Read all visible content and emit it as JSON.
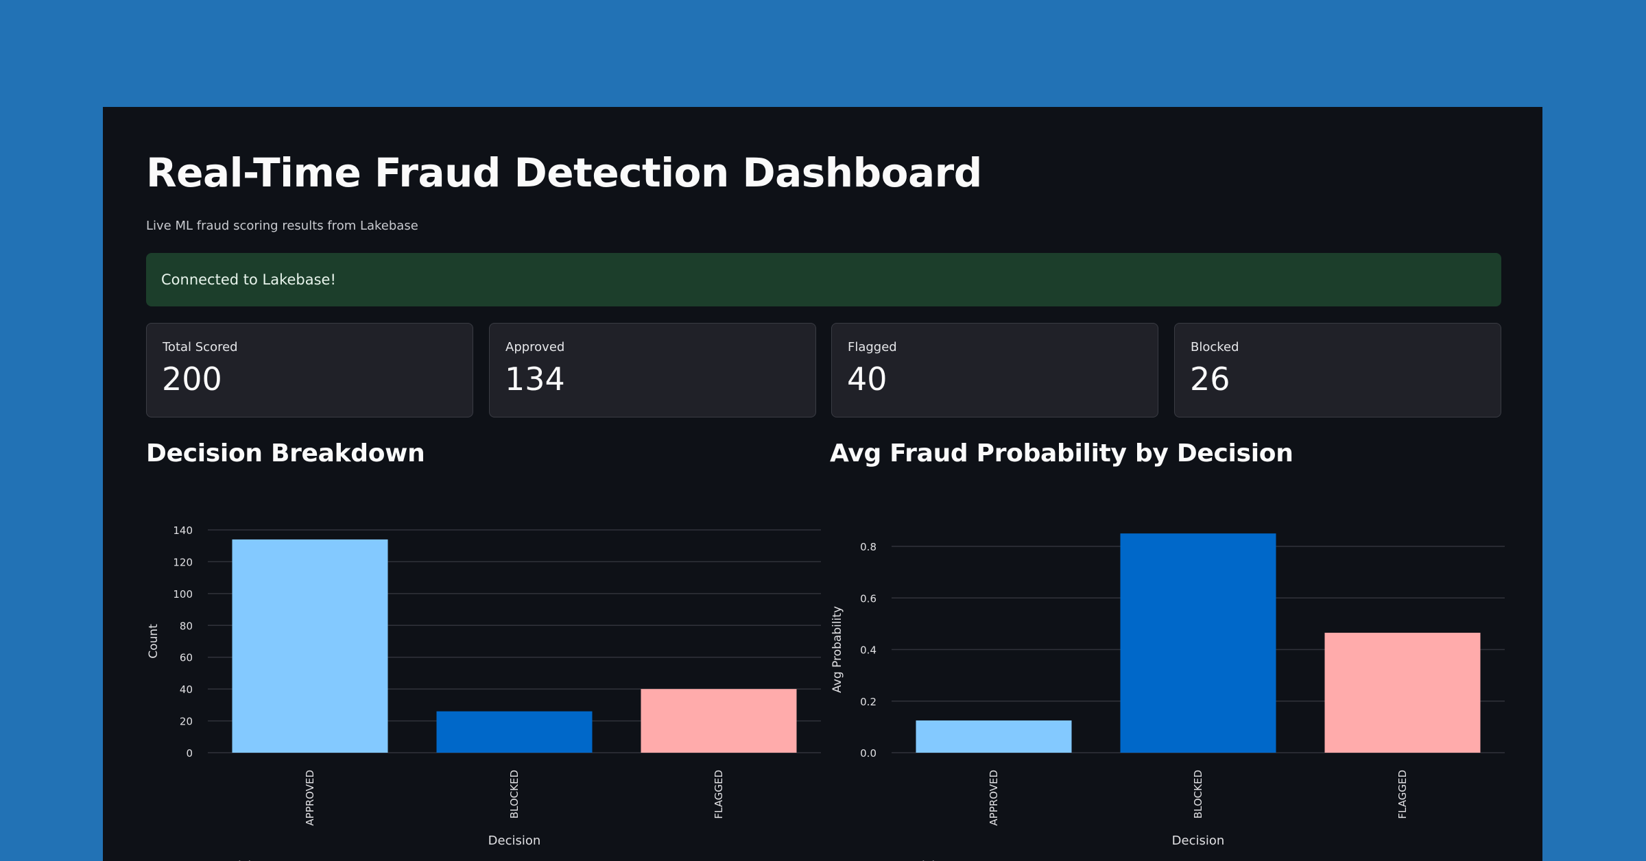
{
  "page": {
    "title": "Real-Time Fraud Detection Dashboard",
    "subtitle": "Live ML fraud scoring results from Lakebase"
  },
  "status": {
    "message": "Connected to Lakebase!",
    "color": "#1c3e2b"
  },
  "metrics": [
    {
      "label": "Total Scored",
      "value": "200"
    },
    {
      "label": "Approved",
      "value": "134"
    },
    {
      "label": "Flagged",
      "value": "40"
    },
    {
      "label": "Blocked",
      "value": "26"
    }
  ],
  "colors": {
    "APPROVED": "#83c9ff",
    "BLOCKED": "#0068c9",
    "FLAGGED": "#ffabab",
    "background": "#0e1117",
    "outer_background": "#2272b5"
  },
  "charts": {
    "decision_breakdown": {
      "title": "Decision Breakdown"
    },
    "avg_probability": {
      "title": "Avg Fraud Probability by Decision"
    }
  },
  "chart_data": [
    {
      "type": "bar",
      "title": "Decision Breakdown",
      "xlabel": "Decision",
      "ylabel": "Count",
      "categories": [
        "APPROVED",
        "BLOCKED",
        "FLAGGED"
      ],
      "values": [
        134,
        26,
        40
      ],
      "ylim": [
        0,
        140
      ],
      "yticks": [
        "0",
        "20",
        "40",
        "60",
        "80",
        "100",
        "120",
        "140"
      ],
      "grid": true,
      "legend": {
        "title": "Decision",
        "entries": [
          "APPROVED",
          "BLOCKED",
          "FLAGGED"
        ],
        "placement": "bottom-left"
      }
    },
    {
      "type": "bar",
      "title": "Avg Fraud Probability by Decision",
      "xlabel": "Decision",
      "ylabel": "Avg Probability",
      "categories": [
        "APPROVED",
        "BLOCKED",
        "FLAGGED"
      ],
      "values": [
        0.125,
        0.85,
        0.465
      ],
      "ylim": [
        0,
        0.8
      ],
      "yticks": [
        "0.0",
        "0.2",
        "0.4",
        "0.6",
        "0.8"
      ],
      "grid": true,
      "legend": {
        "title": "Decision",
        "entries": [
          "APPROVED",
          "BLOCKED",
          "FLAGGED"
        ],
        "placement": "bottom-left"
      }
    }
  ]
}
